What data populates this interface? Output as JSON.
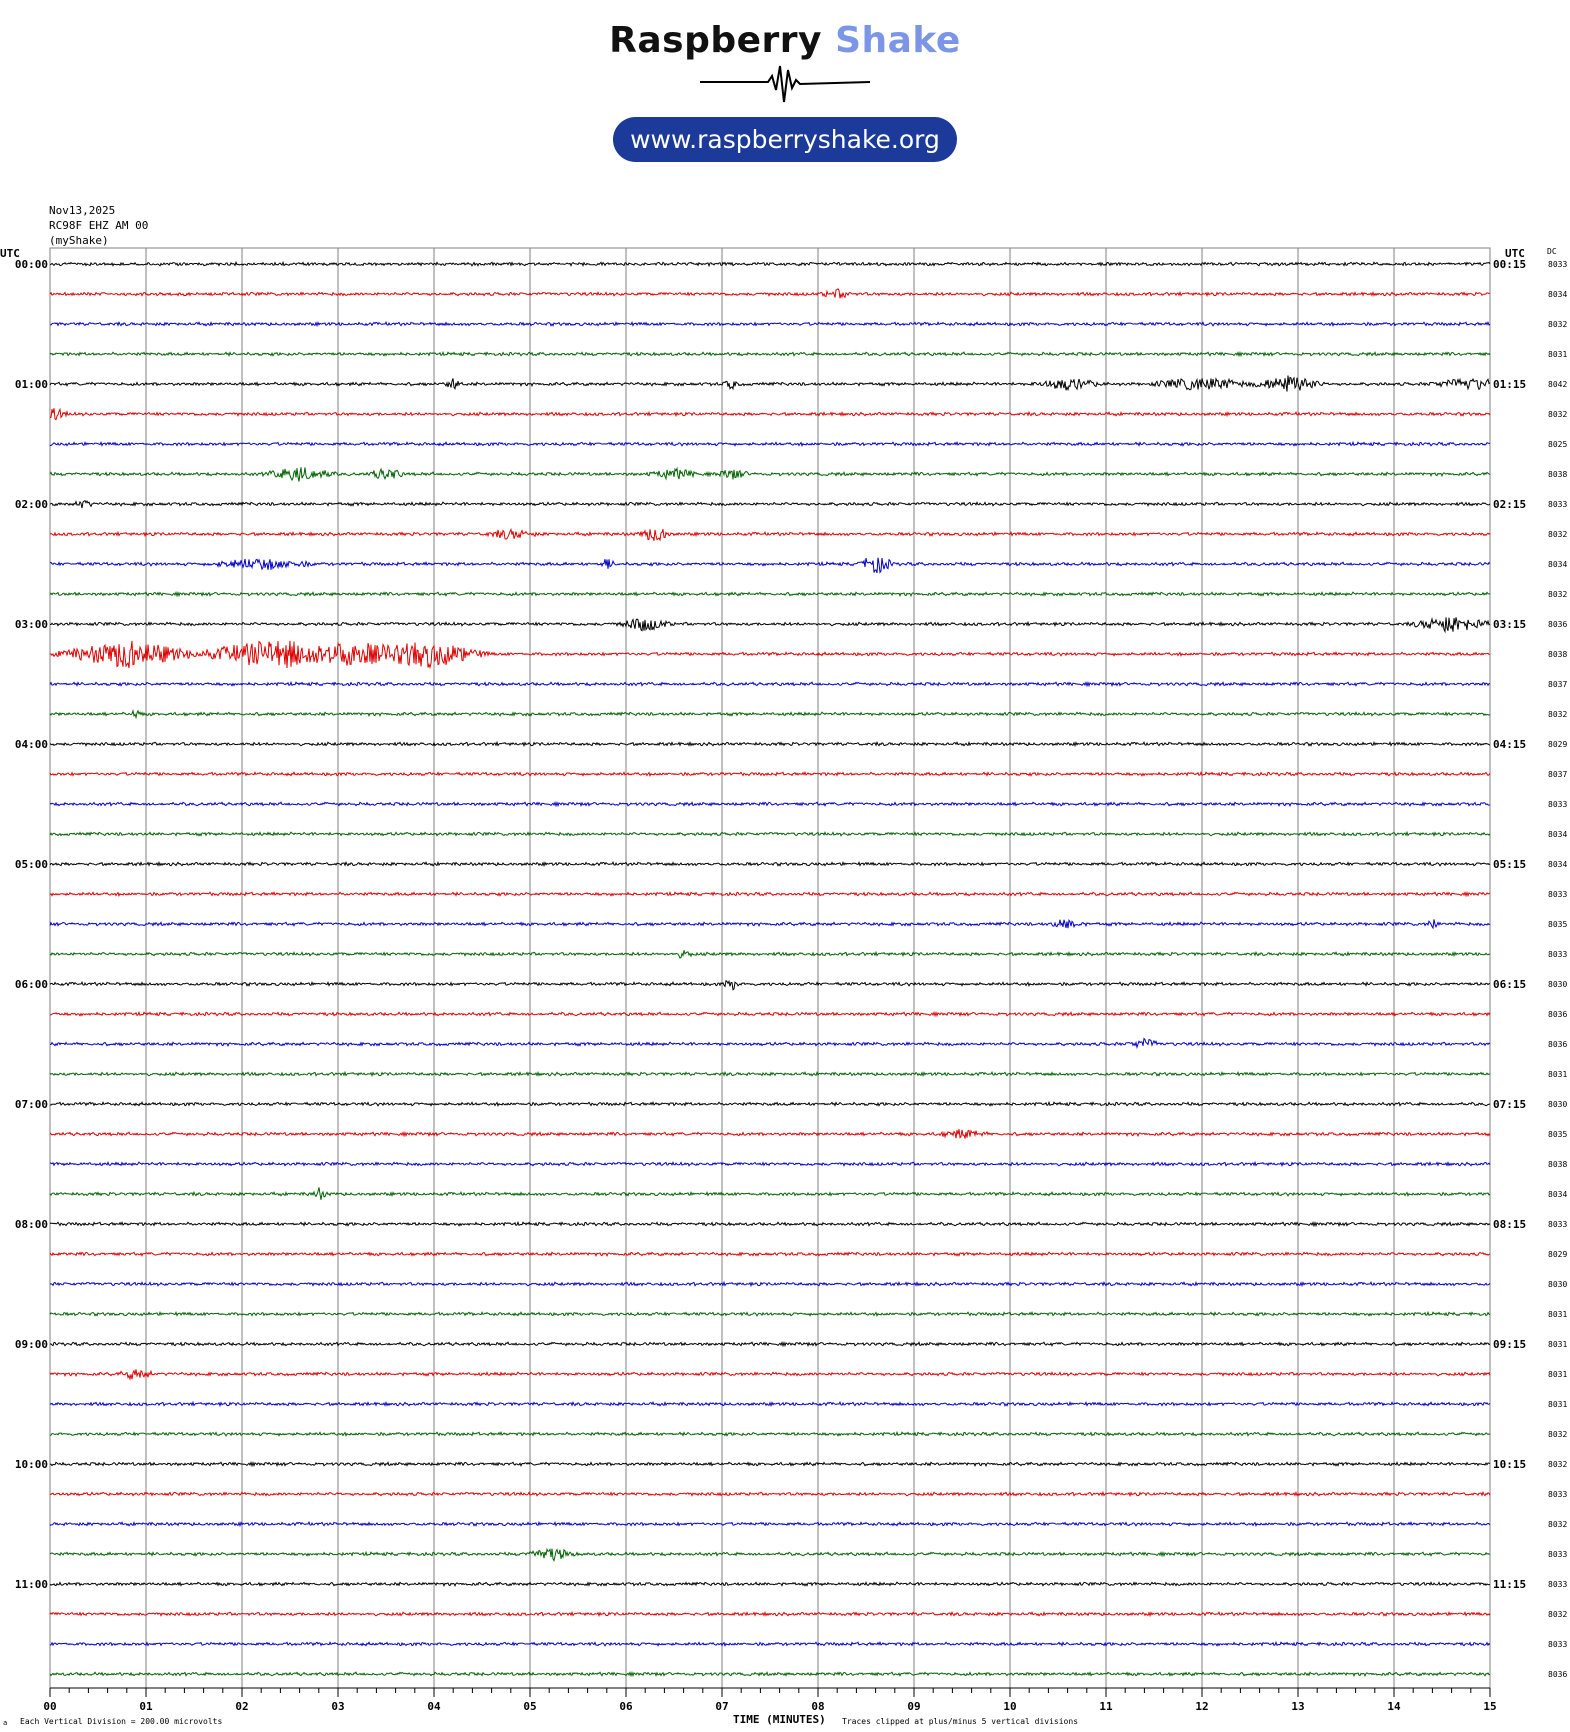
{
  "branding": {
    "title_word1": "Raspberry",
    "title_word2": "Shake",
    "url": "www.raspberryshake.org"
  },
  "header": {
    "date": "Nov13,2025",
    "station": "RC98F EHZ AM 00",
    "source": "(myShake)",
    "utc_left": "UTC",
    "utc_right": "UTC",
    "dc_label": "DC"
  },
  "footer": {
    "division_note": "Each Vertical Division =  200.00 microvolts",
    "xlabel": "TIME (MINUTES)",
    "clip_note": "Traces clipped at plus/minus 5 vertical divisions",
    "corner_mark": "a"
  },
  "colors": {
    "trace_cycle": [
      "#000000",
      "#e00000",
      "#0000cc",
      "#006400"
    ],
    "grid": "#808080"
  },
  "chart_data": {
    "type": "line",
    "title": "",
    "xlabel": "TIME (MINUTES)",
    "ylabel": "",
    "xlim": [
      0,
      15
    ],
    "x_ticks": [
      "00",
      "01",
      "02",
      "03",
      "04",
      "05",
      "06",
      "07",
      "08",
      "09",
      "10",
      "11",
      "12",
      "13",
      "14",
      "15"
    ],
    "row_minutes": 15,
    "rows": 48,
    "left_labels": [
      "00:00",
      "01:00",
      "02:00",
      "03:00",
      "04:00",
      "05:00",
      "06:00",
      "07:00",
      "08:00",
      "09:00",
      "10:00",
      "11:00"
    ],
    "right_labels": [
      "00:15",
      "01:15",
      "02:15",
      "03:15",
      "04:15",
      "05:15",
      "06:15",
      "07:15",
      "08:15",
      "09:15",
      "10:15",
      "11:15"
    ],
    "dc_offsets": [
      "8033",
      "8034",
      "8032",
      "8031",
      "8042",
      "8032",
      "8025",
      "8038",
      "8033",
      "8032",
      "8034",
      "8032",
      "8036",
      "8038",
      "8037",
      "8032",
      "8029",
      "8037",
      "8033",
      "8034",
      "8034",
      "8033",
      "8035",
      "8033",
      "8030",
      "8036",
      "8036",
      "8031",
      "8030",
      "8035",
      "8038",
      "8034",
      "8033",
      "8029",
      "8030",
      "8031",
      "8031",
      "8031",
      "8031",
      "8032",
      "8032",
      "8033",
      "8032",
      "8033",
      "8033",
      "8032",
      "8033",
      "8036"
    ],
    "noise_level": 0.08,
    "events": [
      {
        "row": 1,
        "minute": 8.2,
        "width": 0.2,
        "amp": 0.25
      },
      {
        "row": 4,
        "minute": 4.2,
        "width": 0.1,
        "amp": 0.35
      },
      {
        "row": 4,
        "minute": 7.1,
        "width": 0.1,
        "amp": 0.3
      },
      {
        "row": 4,
        "minute": 10.6,
        "width": 0.4,
        "amp": 0.35
      },
      {
        "row": 4,
        "minute": 12.0,
        "width": 0.6,
        "amp": 0.4
      },
      {
        "row": 4,
        "minute": 12.9,
        "width": 0.4,
        "amp": 0.55
      },
      {
        "row": 4,
        "minute": 14.8,
        "width": 0.5,
        "amp": 0.35
      },
      {
        "row": 5,
        "minute": 0.05,
        "width": 0.15,
        "amp": 0.35
      },
      {
        "row": 7,
        "minute": 2.6,
        "width": 0.4,
        "amp": 0.45
      },
      {
        "row": 7,
        "minute": 3.5,
        "width": 0.2,
        "amp": 0.4
      },
      {
        "row": 7,
        "minute": 6.5,
        "width": 0.3,
        "amp": 0.3
      },
      {
        "row": 7,
        "minute": 7.1,
        "width": 0.2,
        "amp": 0.3
      },
      {
        "row": 8,
        "minute": 0.35,
        "width": 0.1,
        "amp": 0.3
      },
      {
        "row": 9,
        "minute": 4.8,
        "width": 0.3,
        "amp": 0.3
      },
      {
        "row": 9,
        "minute": 6.3,
        "width": 0.2,
        "amp": 0.45
      },
      {
        "row": 10,
        "minute": 2.2,
        "width": 0.6,
        "amp": 0.35
      },
      {
        "row": 10,
        "minute": 5.8,
        "width": 0.1,
        "amp": 0.3
      },
      {
        "row": 10,
        "minute": 8.6,
        "width": 0.2,
        "amp": 0.6
      },
      {
        "row": 12,
        "minute": 6.2,
        "width": 0.3,
        "amp": 0.45
      },
      {
        "row": 12,
        "minute": 14.6,
        "width": 0.45,
        "amp": 0.55
      },
      {
        "row": 13,
        "minute": 0.8,
        "width": 0.8,
        "amp": 0.9
      },
      {
        "row": 13,
        "minute": 2.4,
        "width": 1.0,
        "amp": 0.95
      },
      {
        "row": 13,
        "minute": 3.2,
        "width": 0.4,
        "amp": 0.6
      },
      {
        "row": 13,
        "minute": 3.9,
        "width": 0.7,
        "amp": 0.9
      },
      {
        "row": 15,
        "minute": 0.9,
        "width": 0.05,
        "amp": 0.5
      },
      {
        "row": 22,
        "minute": 10.6,
        "width": 0.2,
        "amp": 0.3
      },
      {
        "row": 22,
        "minute": 14.4,
        "width": 0.05,
        "amp": 0.6
      },
      {
        "row": 23,
        "minute": 6.6,
        "width": 0.1,
        "amp": 0.25
      },
      {
        "row": 24,
        "minute": 7.1,
        "width": 0.1,
        "amp": 0.35
      },
      {
        "row": 26,
        "minute": 11.4,
        "width": 0.2,
        "amp": 0.3
      },
      {
        "row": 29,
        "minute": 9.5,
        "width": 0.3,
        "amp": 0.25
      },
      {
        "row": 31,
        "minute": 2.8,
        "width": 0.1,
        "amp": 0.4
      },
      {
        "row": 37,
        "minute": 0.9,
        "width": 0.2,
        "amp": 0.35
      },
      {
        "row": 43,
        "minute": 5.2,
        "width": 0.3,
        "amp": 0.4
      }
    ]
  }
}
